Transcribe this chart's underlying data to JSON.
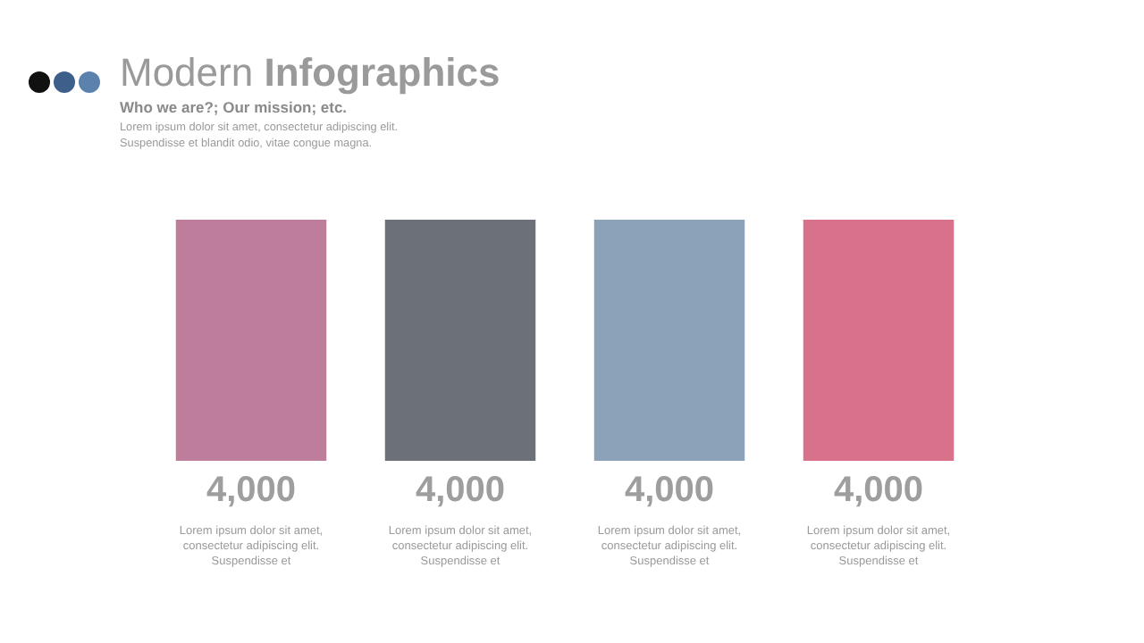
{
  "chart_data": {
    "type": "bar",
    "title": "Modern Infographics",
    "subtitle": "Who we are?; Our mission; etc.",
    "annotations": [
      "Lorem ipsum dolor sit amet, consectetur adipiscing elit. Suspendisse et blandit odio, vitae congue magna.",
      "Lorem ipsum dolor sit amet, consectetur adipiscing elit. Suspendisse et",
      "Lorem ipsum dolor sit amet, consectetur adipiscing elit. Suspendisse et",
      "Lorem ipsum dolor sit amet, consectetur adipiscing elit. Suspendisse et",
      "Lorem ipsum dolor sit amet, consectetur adipiscing elit. Suspendisse et"
    ],
    "categories": [
      null,
      null,
      null,
      null
    ],
    "values": [
      4000,
      4000,
      4000,
      4000
    ],
    "colors": [
      "#bd7d9b",
      "#6b7079",
      "#8ca2b8",
      "#d8718a"
    ],
    "value_labels": [
      "4,000",
      "4,000",
      "4,000",
      "4,000"
    ],
    "legend": false
  }
}
